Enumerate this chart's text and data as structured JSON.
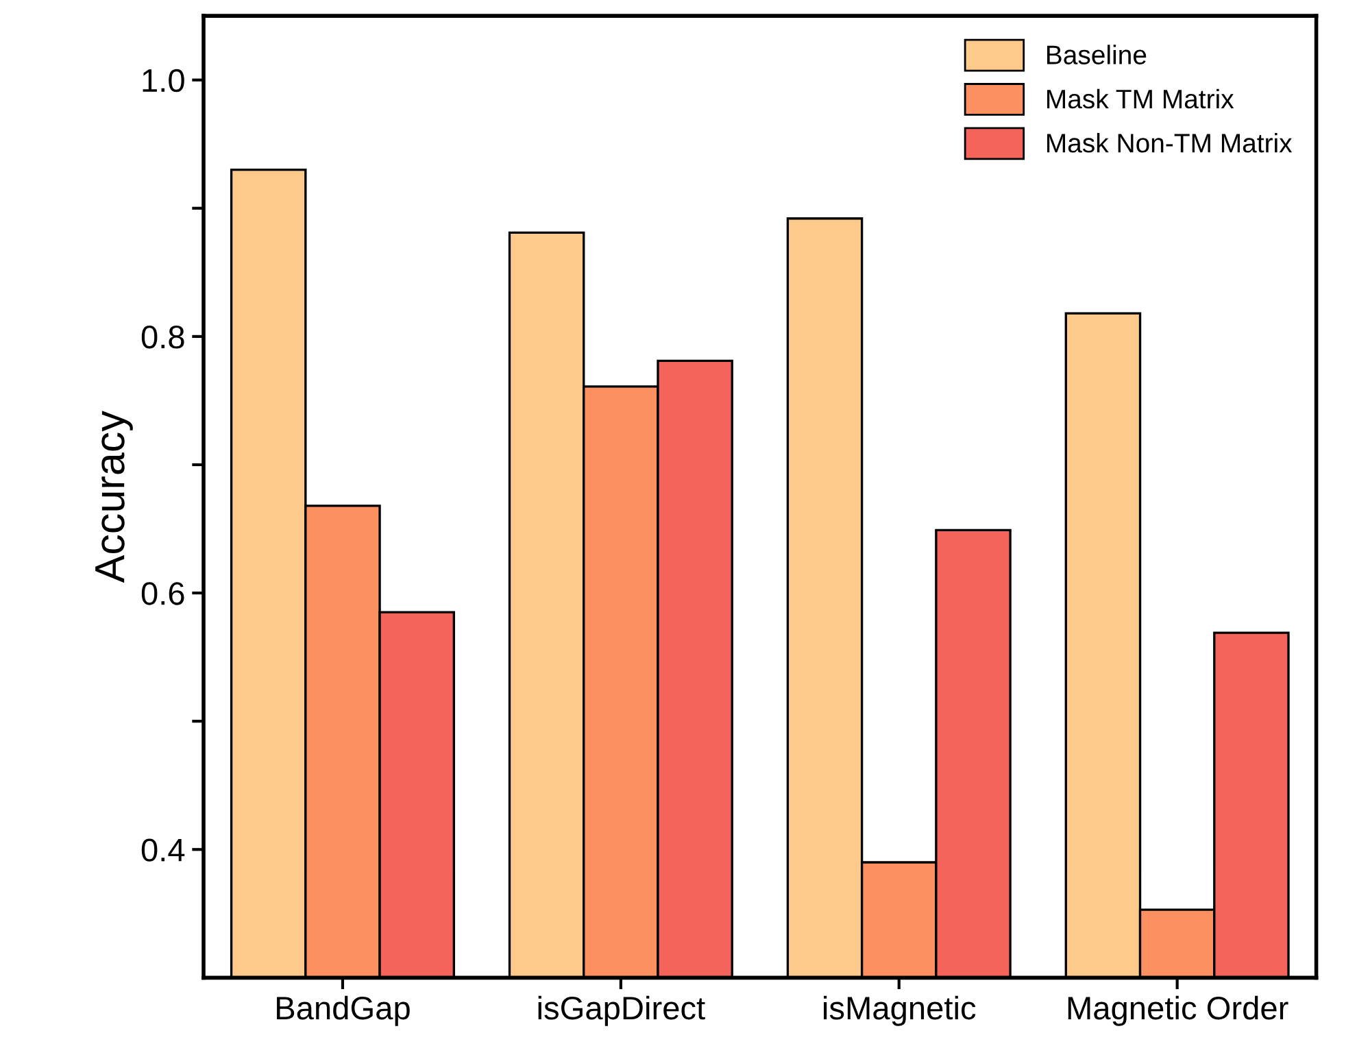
{
  "chart_data": {
    "type": "bar",
    "ylabel": "Accuracy",
    "categories": [
      "BandGap",
      "isGapDirect",
      "isMagnetic",
      "Magnetic Order"
    ],
    "series": [
      {
        "name": "Baseline",
        "color": "#fdca8b",
        "values": [
          0.93,
          0.881,
          0.892,
          0.818
        ]
      },
      {
        "name": "Mask TM Matrix",
        "color": "#fc9060",
        "values": [
          0.668,
          0.761,
          0.39,
          0.353
        ]
      },
      {
        "name": "Mask Non-TM Matrix",
        "color": "#f4645a",
        "values": [
          0.585,
          0.781,
          0.649,
          0.569
        ]
      }
    ],
    "ylim": [
      0.3,
      1.05
    ],
    "yticks": [
      0.4,
      {
        "value": 0.5,
        "label": null
      },
      0.6,
      {
        "value": 0.7,
        "label": null
      },
      0.8,
      {
        "value": 0.9,
        "label": null
      },
      {
        "value": 1.0,
        "label": "1.0"
      }
    ],
    "grid": false,
    "legend": "top right"
  }
}
